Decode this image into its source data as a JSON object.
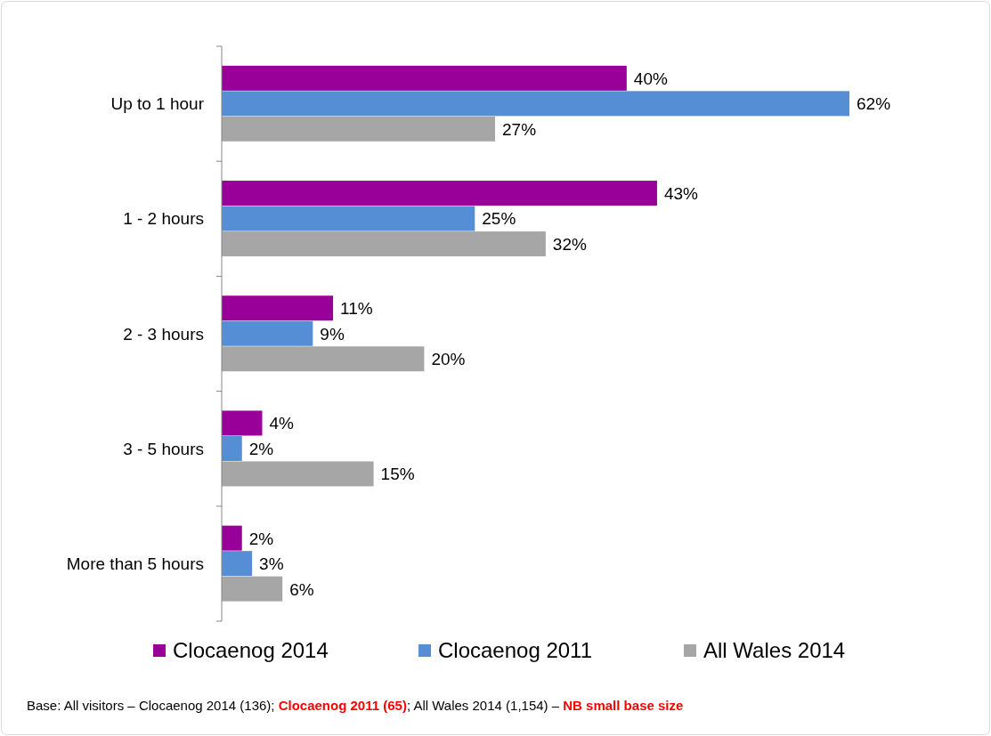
{
  "chart_data": {
    "type": "bar",
    "orientation": "horizontal",
    "categories": [
      "Up to 1 hour",
      "1 - 2 hours",
      "2 - 3 hours",
      "3 - 5 hours",
      "More than 5 hours"
    ],
    "series": [
      {
        "name": "Clocaenog 2014",
        "color": "#990099",
        "values": [
          40,
          43,
          11,
          4,
          2
        ],
        "value_labels": [
          "40%",
          "43%",
          "11%",
          "4%",
          "2%"
        ]
      },
      {
        "name": "Clocaenog 2011",
        "color": "#558ed5",
        "values": [
          62,
          25,
          9,
          2,
          3
        ],
        "value_labels": [
          "62%",
          "25%",
          "9%",
          "2%",
          "3%"
        ]
      },
      {
        "name": "All Wales 2014",
        "color": "#a6a6a6",
        "values": [
          27,
          32,
          20,
          15,
          6
        ],
        "value_labels": [
          "27%",
          "32%",
          "20%",
          "15%",
          "6%"
        ]
      }
    ],
    "legend": "bottom",
    "grid": false,
    "annotations": [
      "Base: All visitors – Clocaenog 2014 (136); ",
      "Clocaenog 2011 (65)",
      "; All Wales 2014 (1,154) – ",
      "NB small base size"
    ]
  }
}
